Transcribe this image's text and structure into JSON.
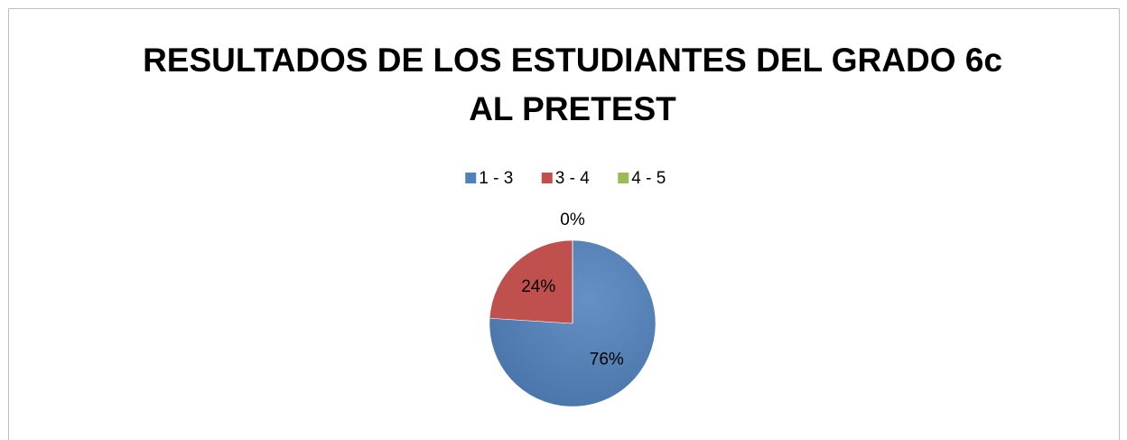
{
  "chart_data": {
    "type": "pie",
    "title": "RESULTADOS DE LOS ESTUDIANTES DEL GRADO 6c AL PRETEST",
    "categories": [
      "1 - 3",
      "3 - 4",
      "4 - 5"
    ],
    "values": [
      76,
      24,
      0
    ],
    "value_labels": [
      "76%",
      "24%",
      "0%"
    ],
    "colors": [
      "#4f81bd",
      "#c0504d",
      "#9bbb59"
    ],
    "legend": "top"
  }
}
